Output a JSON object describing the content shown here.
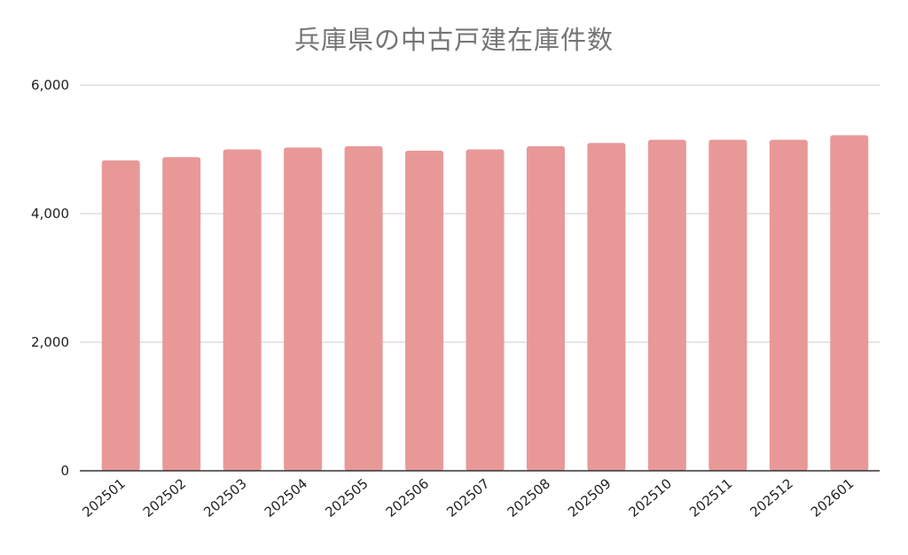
{
  "chart_data": {
    "type": "bar",
    "title": "兵庫県の中古戸建在庫件数",
    "xlabel": "",
    "ylabel": "",
    "categories": [
      "202501",
      "202502",
      "202503",
      "202504",
      "202505",
      "202506",
      "202507",
      "202508",
      "202509",
      "202510",
      "202511",
      "202512",
      "202601"
    ],
    "values": [
      4830,
      4880,
      5000,
      5030,
      5050,
      4980,
      5000,
      5050,
      5100,
      5150,
      5150,
      5150,
      5220
    ],
    "ylim": [
      0,
      6000
    ],
    "yticks": [
      0,
      2000,
      4000,
      6000
    ],
    "ytick_labels": [
      "0",
      "2,000",
      "4,000",
      "6,000"
    ],
    "grid": true,
    "legend": "none",
    "bar_color": "#e99898",
    "grid_color": "#cccccc",
    "axis_color": "#333333"
  }
}
